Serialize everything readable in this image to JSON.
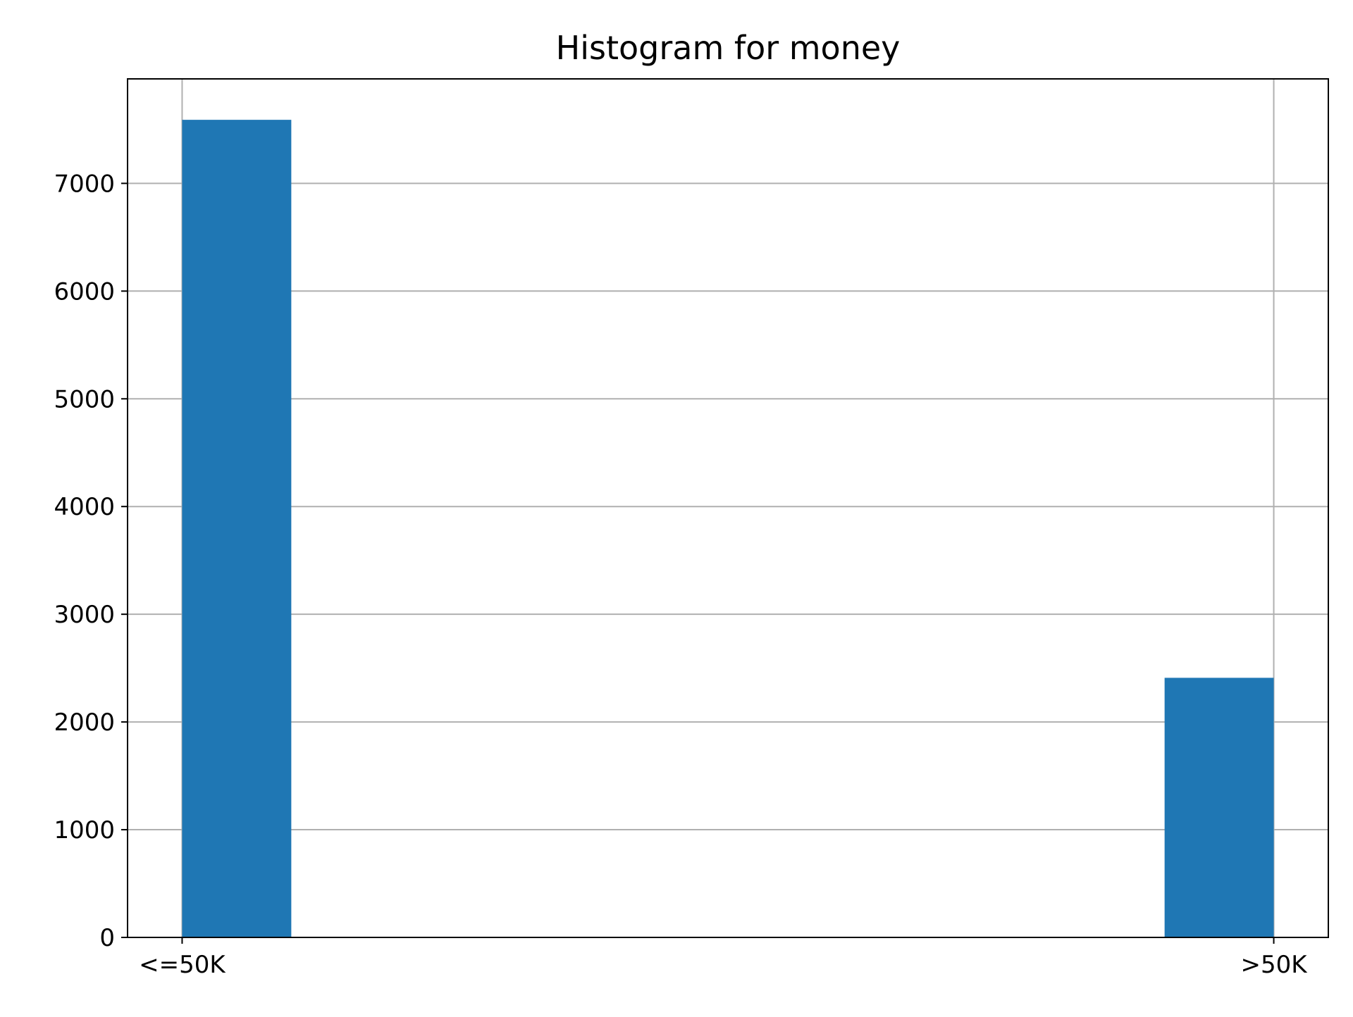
{
  "chart_data": {
    "type": "bar",
    "title": "Histogram for money",
    "xlabel": "",
    "ylabel": "",
    "categories": [
      "<=50K",
      ">50K"
    ],
    "x_range": [
      -0.05,
      1.05
    ],
    "bins": [
      {
        "label": "<=50K",
        "start": 0.0,
        "end": 0.1,
        "value": 7590
      },
      {
        "label": ">50K",
        "start": 0.9,
        "end": 1.0,
        "value": 2410
      }
    ],
    "values": [
      7590,
      2410
    ],
    "ylim": [
      0,
      7970
    ],
    "yticks": [
      0,
      1000,
      2000,
      3000,
      4000,
      5000,
      6000,
      7000
    ],
    "xticks": [
      {
        "label": "<=50K",
        "value": 0
      },
      {
        "label": ">50K",
        "value": 1
      }
    ],
    "grid": true,
    "bar_color": "#1f77b4",
    "grid_color": "#b0b0b0",
    "axis_color": "#000000"
  }
}
